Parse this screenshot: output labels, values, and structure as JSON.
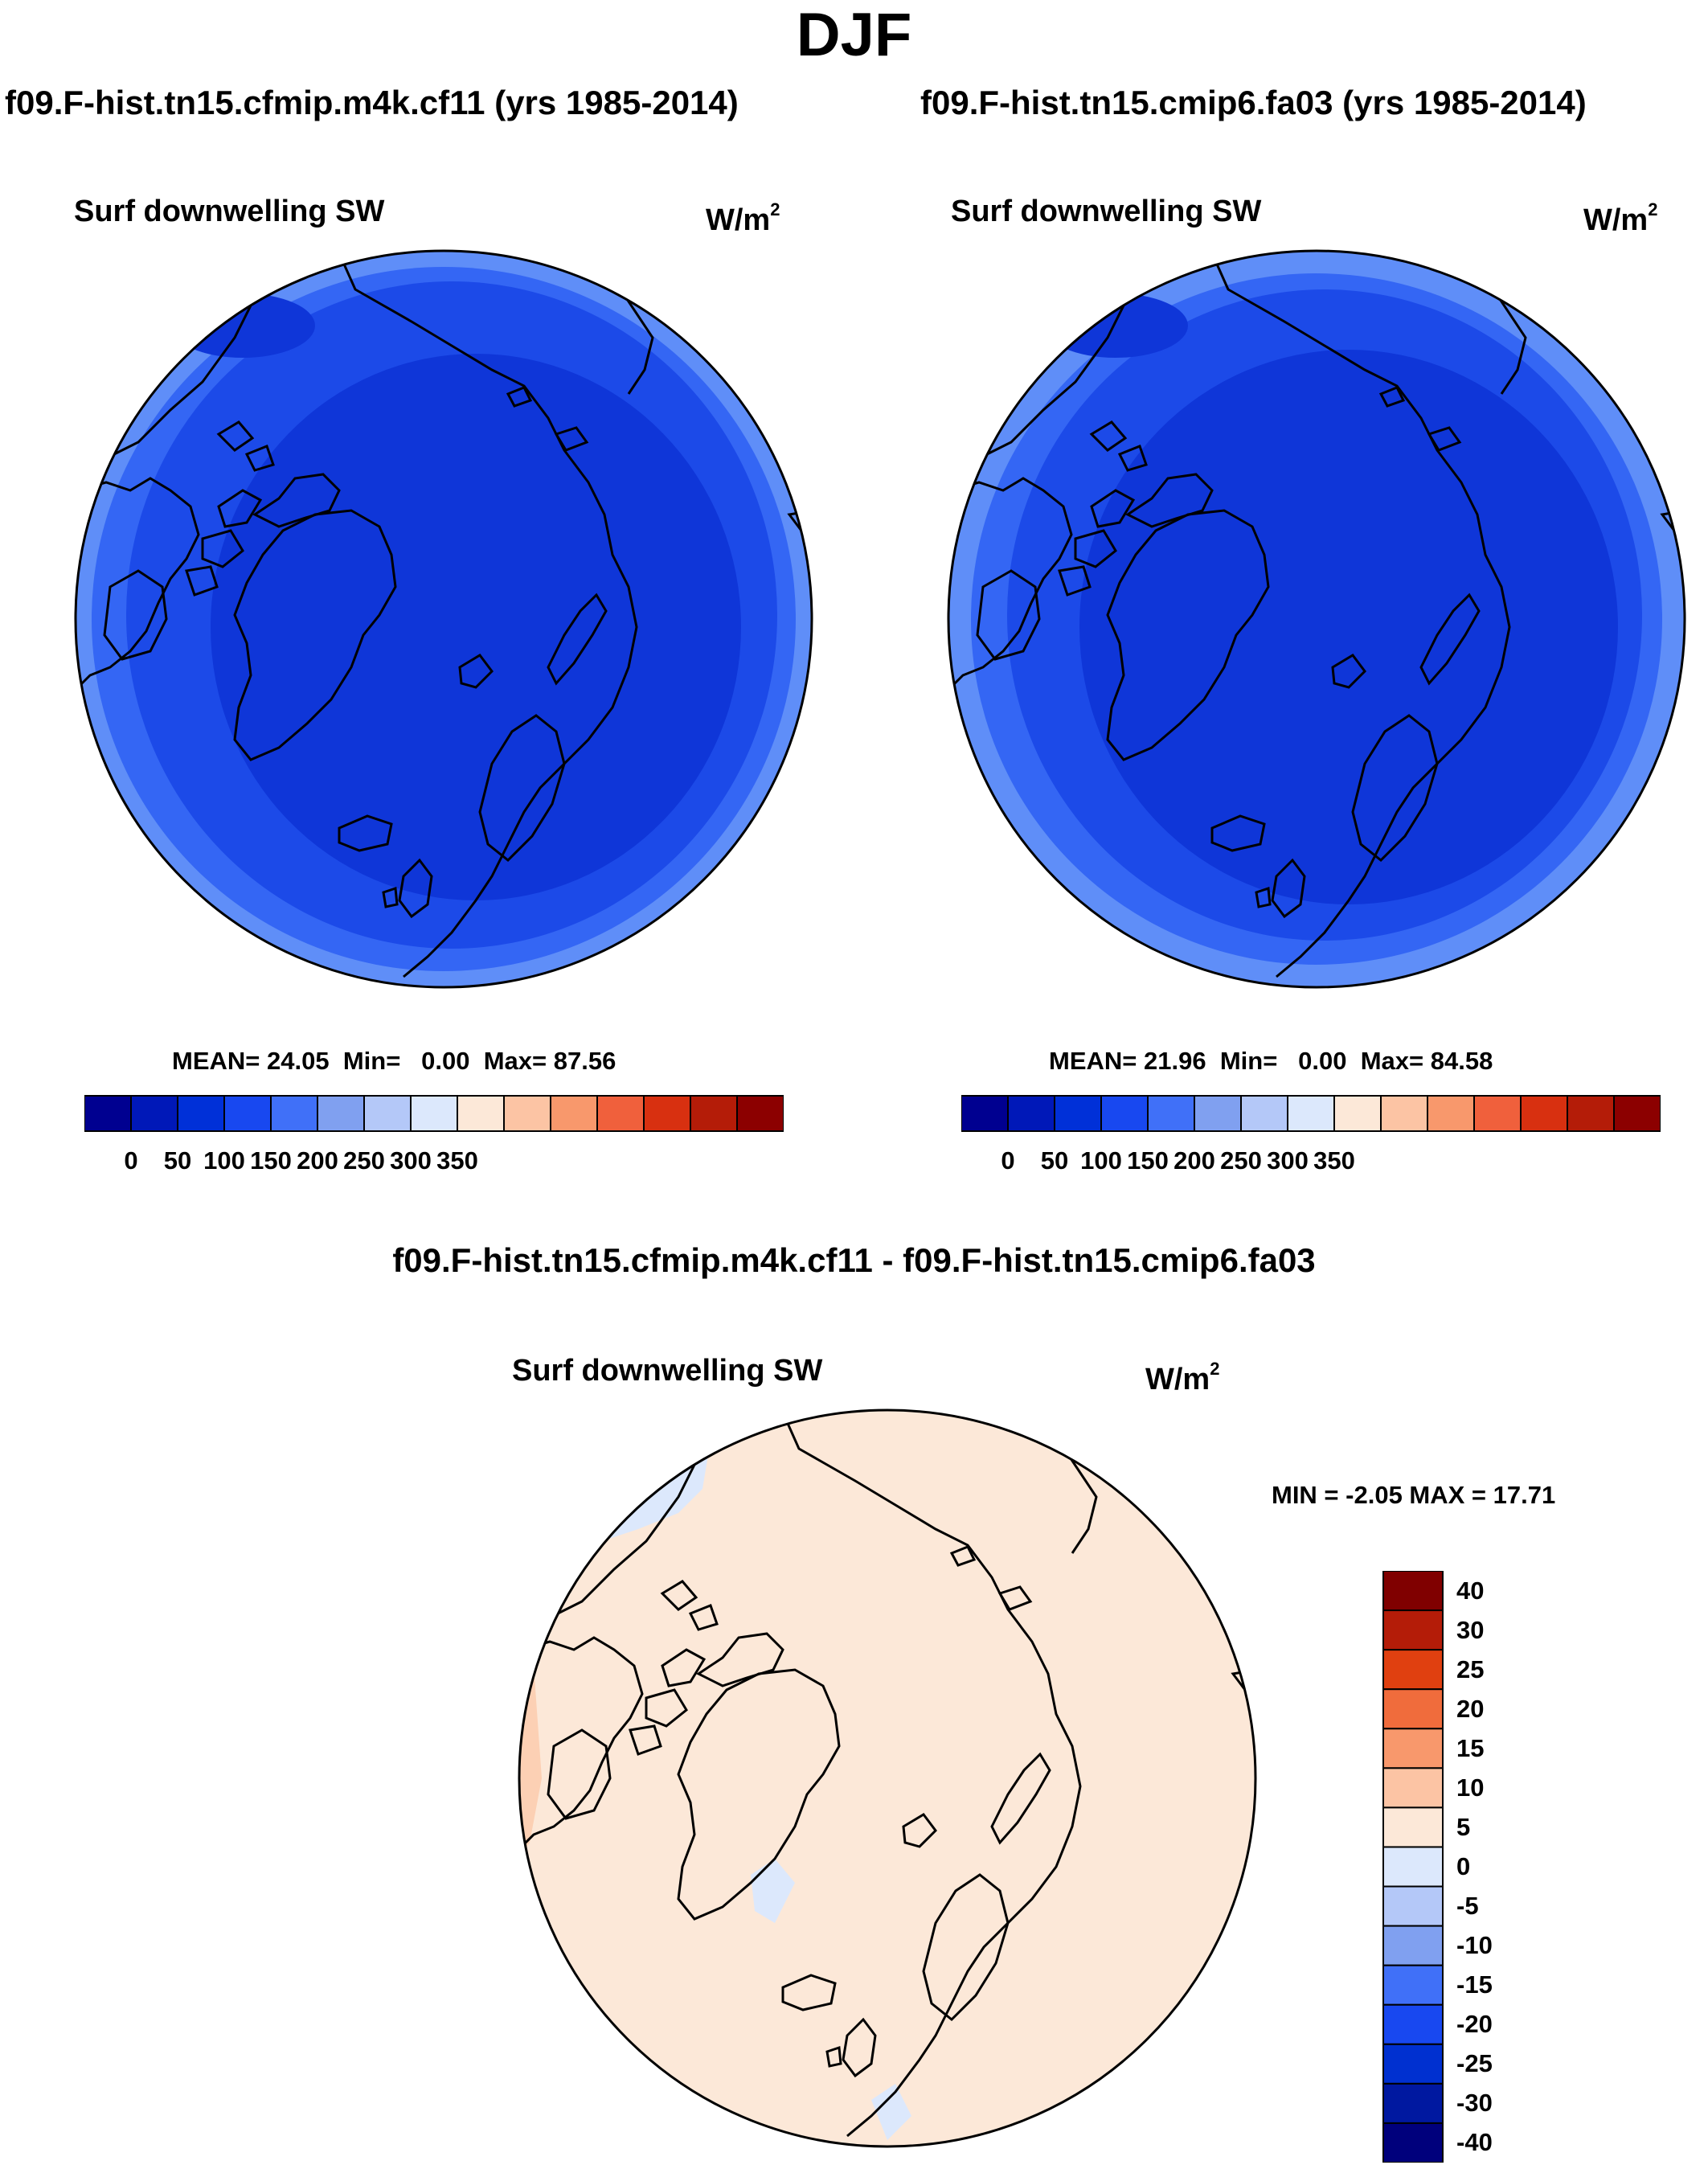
{
  "season": "DJF",
  "panels": [
    {
      "run_title": "f09.F-hist.tn15.cfmip.m4k.cf11 (yrs 1985-2014)",
      "variable": "Surf downwelling SW",
      "units": "W/m",
      "units_exp": "2",
      "mean_label": "MEAN=",
      "mean": "24.05",
      "min_label": "Min=",
      "min": "0.00",
      "max_label": "Max=",
      "max": "87.56"
    },
    {
      "run_title": "f09.F-hist.tn15.cmip6.fa03 (yrs 1985-2014)",
      "variable": "Surf downwelling SW",
      "units": "W/m",
      "units_exp": "2",
      "mean_label": "MEAN=",
      "mean": "21.96",
      "min_label": "Min=",
      "min": "0.00",
      "max_label": "Max=",
      "max": "84.58"
    }
  ],
  "colorbar": {
    "colors": [
      "#000090",
      "#0018b8",
      "#0030d8",
      "#1848f0",
      "#4070f8",
      "#80a0f0",
      "#b4c8f8",
      "#dce8fc",
      "#fce8d8",
      "#fcc4a4",
      "#f8986c",
      "#f0603c",
      "#d83010",
      "#b41c08",
      "#8c0000"
    ],
    "labels": [
      "0",
      "50",
      "100",
      "150",
      "200",
      "250",
      "300",
      "350"
    ]
  },
  "difference": {
    "title": "f09.F-hist.tn15.cfmip.m4k.cf11 - f09.F-hist.tn15.cmip6.fa03",
    "variable": "Surf downwelling SW",
    "units": "W/m",
    "units_exp": "2",
    "minmax_text": "MIN =  -2.05 MAX =  17.71",
    "colorbar": {
      "colors": [
        "#00007c",
        "#0018a0",
        "#0030d0",
        "#1848f0",
        "#4070f8",
        "#80a0f0",
        "#b4c8f8",
        "#dce8fc",
        "#fce8d8",
        "#fcc4a4",
        "#f8986c",
        "#f06c3c",
        "#e04010",
        "#b41c08",
        "#800000"
      ],
      "labels": [
        "-40",
        "-30",
        "-25",
        "-20",
        "-15",
        "-10",
        "-5",
        "0",
        "5",
        "10",
        "15",
        "20",
        "25",
        "30",
        "40"
      ]
    }
  }
}
